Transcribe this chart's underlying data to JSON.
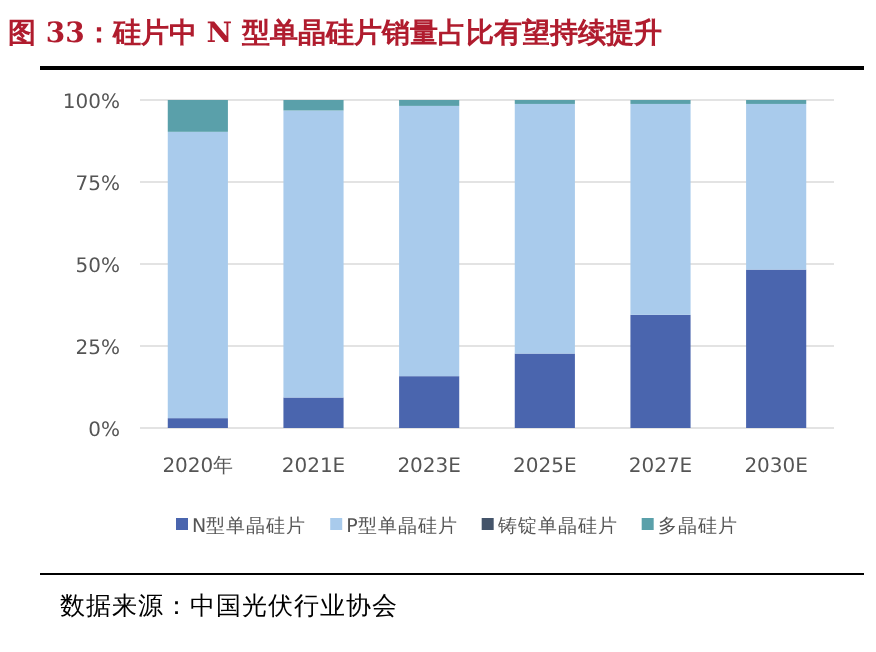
{
  "chart_data": {
    "type": "bar",
    "title": "图 33：硅片中 N 型单晶硅片销量占比有望持续提升",
    "categories": [
      "2020年",
      "2021E",
      "2023E",
      "2025E",
      "2027E",
      "2030E"
    ],
    "stacked": true,
    "grid": "y",
    "legend": "bottom",
    "ylim": [
      0,
      100
    ],
    "yticks": [
      {
        "value": 0,
        "label": "0%"
      },
      {
        "value": 25,
        "label": "25%"
      },
      {
        "value": 50,
        "label": "50%"
      },
      {
        "value": 75,
        "label": "75%"
      },
      {
        "value": 100,
        "label": "100%"
      }
    ],
    "series": [
      {
        "name": "N型单晶硅片",
        "color": "#4a65ae",
        "values": [
          3.0,
          9.3,
          15.8,
          22.7,
          34.5,
          48.3
        ]
      },
      {
        "name": "P型单晶硅片",
        "color": "#a9cbec",
        "values": [
          87.3,
          87.5,
          82.4,
          76.1,
          64.3,
          50.5
        ]
      },
      {
        "name": "铸锭单晶硅片",
        "color": "#44546a",
        "values": [
          0,
          0,
          0,
          0,
          0,
          0
        ]
      },
      {
        "name": "多晶硅片",
        "color": "#5aa0aa",
        "values": [
          9.7,
          3.2,
          1.8,
          1.2,
          1.2,
          1.2
        ]
      }
    ],
    "annotations": [
      "数据来源：中国光伏行业协会"
    ]
  }
}
